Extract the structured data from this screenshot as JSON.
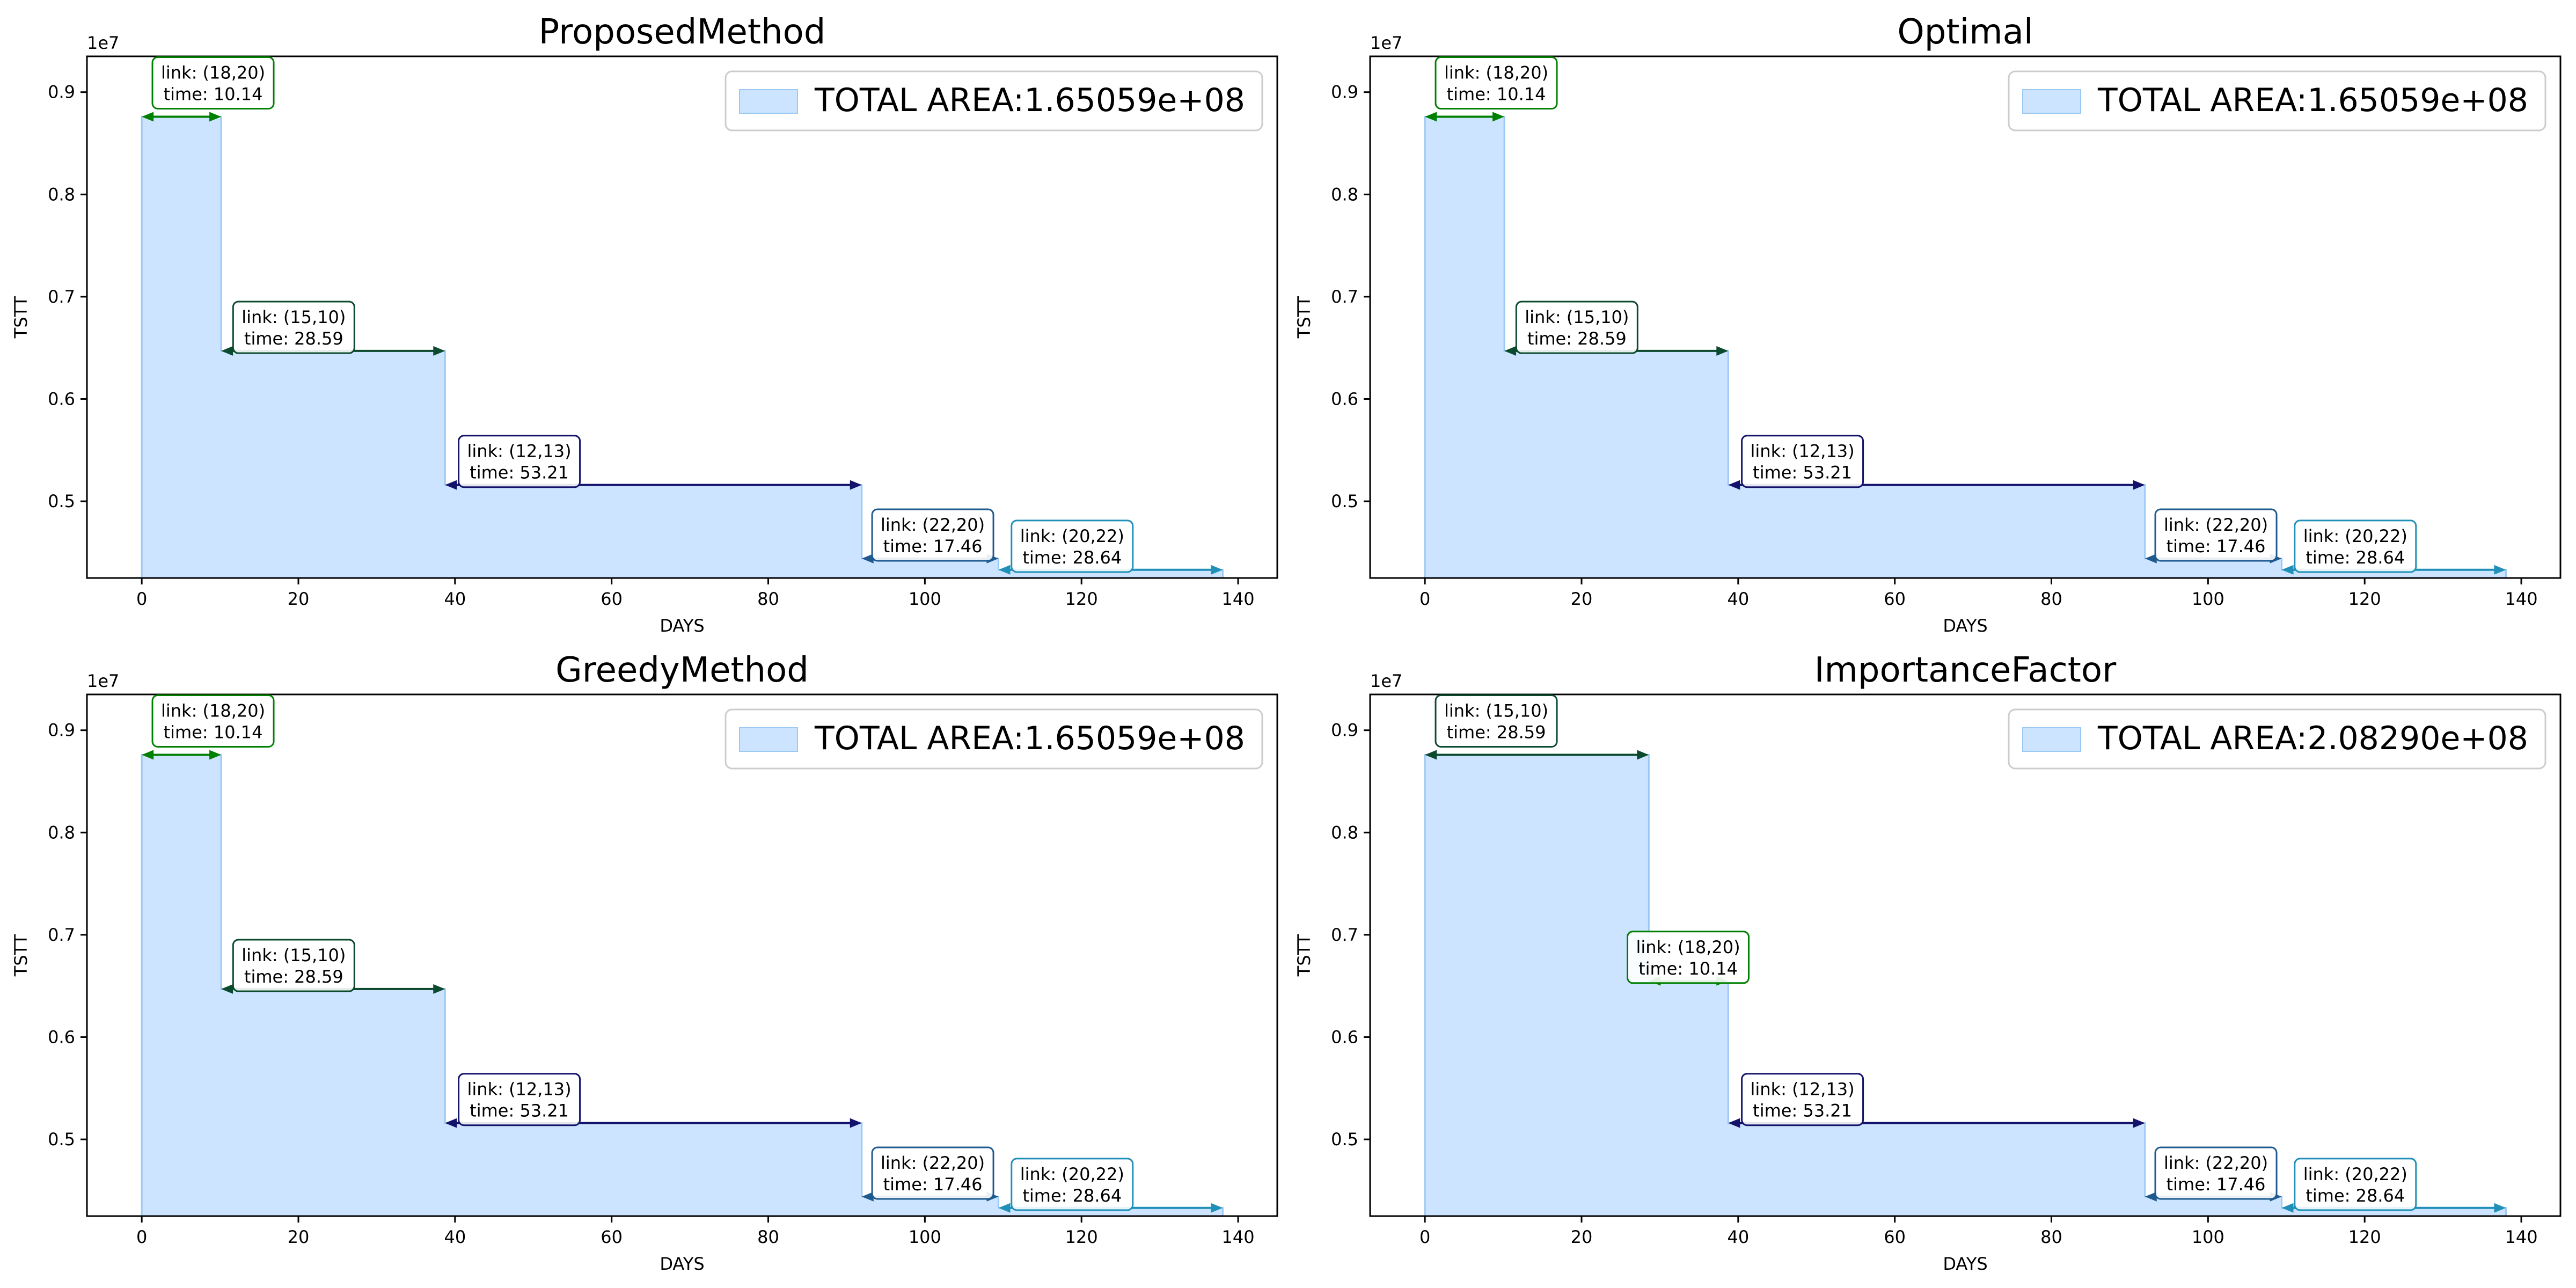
{
  "chart_data": [
    {
      "type": "area",
      "title": "ProposedMethod",
      "xlabel": "DAYS",
      "ylabel": "TSTT",
      "offset_label": "1e7",
      "xlim": [
        -7,
        145
      ],
      "ylim": [
        4250000.0,
        9350000.0
      ],
      "xticks": [
        0,
        20,
        40,
        60,
        80,
        100,
        120,
        140
      ],
      "yticks": [
        0.5,
        0.6,
        0.7,
        0.8,
        0.9
      ],
      "legend": {
        "label": "TOTAL AREA:1.65059e+08",
        "placement": "upper right"
      },
      "step_x": [
        0,
        10.14,
        38.73,
        91.94,
        109.4,
        138.04
      ],
      "step_y": [
        8760000.0,
        6470000.0,
        5160000.0,
        4440000.0,
        4330000.0
      ],
      "annotations": [
        {
          "link": "link: (18,20)",
          "time": "time: 10.14",
          "color": "#008000",
          "x_start": 0,
          "x_end": 10.14,
          "y": 8760000.0,
          "label_x": 1.5,
          "label_y": 9090000.0
        },
        {
          "link": "link: (15,10)",
          "time": "time: 28.59",
          "color": "#0b4a2e",
          "x_start": 10.14,
          "x_end": 38.73,
          "y": 6470000.0,
          "label_x": 11.8,
          "label_y": 6700000.0
        },
        {
          "link": "link: (12,13)",
          "time": "time: 53.21",
          "color": "#13136b",
          "x_start": 38.73,
          "x_end": 91.94,
          "y": 5160000.0,
          "label_x": 40.6,
          "label_y": 5390000.0
        },
        {
          "link": "link: (22,20)",
          "time": "time: 17.46",
          "color": "#1e5a8e",
          "x_start": 91.94,
          "x_end": 109.4,
          "y": 4440000.0,
          "label_x": 93.4,
          "label_y": 4670000.0
        },
        {
          "link": "link: (20,22)",
          "time": "time: 28.64",
          "color": "#2190b8",
          "x_start": 109.4,
          "x_end": 138.04,
          "y": 4330000.0,
          "label_x": 111.2,
          "label_y": 4560000.0
        }
      ]
    },
    {
      "type": "area",
      "title": "Optimal",
      "xlabel": "DAYS",
      "ylabel": "TSTT",
      "offset_label": "1e7",
      "xlim": [
        -7,
        145
      ],
      "ylim": [
        4250000.0,
        9350000.0
      ],
      "xticks": [
        0,
        20,
        40,
        60,
        80,
        100,
        120,
        140
      ],
      "yticks": [
        0.5,
        0.6,
        0.7,
        0.8,
        0.9
      ],
      "legend": {
        "label": "TOTAL AREA:1.65059e+08",
        "placement": "upper right"
      },
      "step_x": [
        0,
        10.14,
        38.73,
        91.94,
        109.4,
        138.04
      ],
      "step_y": [
        8760000.0,
        6470000.0,
        5160000.0,
        4440000.0,
        4330000.0
      ],
      "annotations": [
        {
          "link": "link: (18,20)",
          "time": "time: 10.14",
          "color": "#008000",
          "x_start": 0,
          "x_end": 10.14,
          "y": 8760000.0,
          "label_x": 1.5,
          "label_y": 9090000.0
        },
        {
          "link": "link: (15,10)",
          "time": "time: 28.59",
          "color": "#0b4a2e",
          "x_start": 10.14,
          "x_end": 38.73,
          "y": 6470000.0,
          "label_x": 11.8,
          "label_y": 6700000.0
        },
        {
          "link": "link: (12,13)",
          "time": "time: 53.21",
          "color": "#13136b",
          "x_start": 38.73,
          "x_end": 91.94,
          "y": 5160000.0,
          "label_x": 40.6,
          "label_y": 5390000.0
        },
        {
          "link": "link: (22,20)",
          "time": "time: 17.46",
          "color": "#1e5a8e",
          "x_start": 91.94,
          "x_end": 109.4,
          "y": 4440000.0,
          "label_x": 93.4,
          "label_y": 4670000.0
        },
        {
          "link": "link: (20,22)",
          "time": "time: 28.64",
          "color": "#2190b8",
          "x_start": 109.4,
          "x_end": 138.04,
          "y": 4330000.0,
          "label_x": 111.2,
          "label_y": 4560000.0
        }
      ]
    },
    {
      "type": "area",
      "title": "GreedyMethod",
      "xlabel": "DAYS",
      "ylabel": "TSTT",
      "offset_label": "1e7",
      "xlim": [
        -7,
        145
      ],
      "ylim": [
        4250000.0,
        9350000.0
      ],
      "xticks": [
        0,
        20,
        40,
        60,
        80,
        100,
        120,
        140
      ],
      "yticks": [
        0.5,
        0.6,
        0.7,
        0.8,
        0.9
      ],
      "legend": {
        "label": "TOTAL AREA:1.65059e+08",
        "placement": "upper right"
      },
      "step_x": [
        0,
        10.14,
        38.73,
        91.94,
        109.4,
        138.04
      ],
      "step_y": [
        8760000.0,
        6470000.0,
        5160000.0,
        4440000.0,
        4330000.0
      ],
      "annotations": [
        {
          "link": "link: (18,20)",
          "time": "time: 10.14",
          "color": "#008000",
          "x_start": 0,
          "x_end": 10.14,
          "y": 8760000.0,
          "label_x": 1.5,
          "label_y": 9090000.0
        },
        {
          "link": "link: (15,10)",
          "time": "time: 28.59",
          "color": "#0b4a2e",
          "x_start": 10.14,
          "x_end": 38.73,
          "y": 6470000.0,
          "label_x": 11.8,
          "label_y": 6700000.0
        },
        {
          "link": "link: (12,13)",
          "time": "time: 53.21",
          "color": "#13136b",
          "x_start": 38.73,
          "x_end": 91.94,
          "y": 5160000.0,
          "label_x": 40.6,
          "label_y": 5390000.0
        },
        {
          "link": "link: (22,20)",
          "time": "time: 17.46",
          "color": "#1e5a8e",
          "x_start": 91.94,
          "x_end": 109.4,
          "y": 4440000.0,
          "label_x": 93.4,
          "label_y": 4670000.0
        },
        {
          "link": "link: (20,22)",
          "time": "time: 28.64",
          "color": "#2190b8",
          "x_start": 109.4,
          "x_end": 138.04,
          "y": 4330000.0,
          "label_x": 111.2,
          "label_y": 4560000.0
        }
      ]
    },
    {
      "type": "area",
      "title": "ImportanceFactor",
      "xlabel": "DAYS",
      "ylabel": "TSTT",
      "offset_label": "1e7",
      "xlim": [
        -7,
        145
      ],
      "ylim": [
        4250000.0,
        9350000.0
      ],
      "xticks": [
        0,
        20,
        40,
        60,
        80,
        100,
        120,
        140
      ],
      "yticks": [
        0.5,
        0.6,
        0.7,
        0.8,
        0.9
      ],
      "legend": {
        "label": "TOTAL AREA:2.08290e+08",
        "placement": "upper right"
      },
      "step_x": [
        0,
        28.59,
        38.73,
        91.94,
        109.4,
        138.04
      ],
      "step_y": [
        8760000.0,
        6550000.0,
        5160000.0,
        4440000.0,
        4330000.0
      ],
      "annotations": [
        {
          "link": "link: (15,10)",
          "time": "time: 28.59",
          "color": "#0b4a2e",
          "x_start": 0,
          "x_end": 28.59,
          "y": 8760000.0,
          "label_x": 1.5,
          "label_y": 9090000.0
        },
        {
          "link": "link: (18,20)",
          "time": "time: 10.14",
          "color": "#008000",
          "x_start": 28.59,
          "x_end": 38.73,
          "y": 6550000.0,
          "label_x": 26.0,
          "label_y": 6780000.0
        },
        {
          "link": "link: (12,13)",
          "time": "time: 53.21",
          "color": "#13136b",
          "x_start": 38.73,
          "x_end": 91.94,
          "y": 5160000.0,
          "label_x": 40.6,
          "label_y": 5390000.0
        },
        {
          "link": "link: (22,20)",
          "time": "time: 17.46",
          "color": "#1e5a8e",
          "x_start": 91.94,
          "x_end": 109.4,
          "y": 4440000.0,
          "label_x": 93.4,
          "label_y": 4670000.0
        },
        {
          "link": "link: (20,22)",
          "time": "time: 28.64",
          "color": "#2190b8",
          "x_start": 109.4,
          "x_end": 138.04,
          "y": 4330000.0,
          "label_x": 111.2,
          "label_y": 4560000.0
        }
      ]
    }
  ],
  "colors": {
    "fill": "#cce4ff",
    "fill_edge": "#9cc9f2",
    "legend_swatch": "#cce4ff",
    "axis": "#000000"
  }
}
